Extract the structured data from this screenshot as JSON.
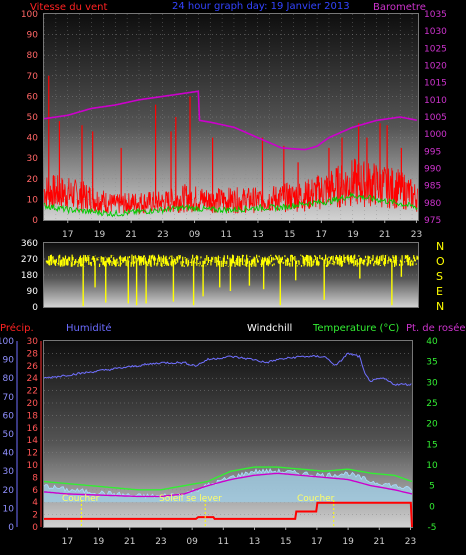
{
  "header": {
    "wind_label": "Vitesse du vent",
    "title": "24 hour graph day: 19 Janvier 2013",
    "baro_label": "Barometre"
  },
  "bottom_header": {
    "precip_label": "Précip.",
    "humidity_label": "Humidité",
    "windchill_label": "Windchill",
    "temp_label": "Temperature (°C)",
    "dew_label": "Pt. de rosée"
  },
  "compass": [
    "N",
    "O",
    "S",
    "E",
    "N"
  ],
  "annotations": {
    "sunset1": "Coucher",
    "sunrise": "Soleil se lever",
    "sunset2": "Coucher"
  },
  "colors": {
    "wind": "#ff0000",
    "gust": "#ff0000",
    "wind_avg": "#00cc00",
    "barometer": "#cc00cc",
    "direction": "#ffff00",
    "humidity": "#7070ff",
    "temperature": "#33ee33",
    "dewpoint": "#cc00cc",
    "windchill": "#aaddff",
    "precip": "#ff0000",
    "sun_marker": "#ffff00"
  },
  "chart_data": [
    {
      "type": "line",
      "name": "wind-barometer",
      "x_ticks": [
        "17",
        "19",
        "21",
        "23",
        "09",
        "11",
        "13",
        "15",
        "17",
        "19",
        "21",
        "23"
      ],
      "y_left_ticks": [
        "100",
        "90",
        "80",
        "70",
        "60",
        "50",
        "40",
        "30",
        "20",
        "10",
        "0"
      ],
      "y_left_range": [
        0,
        100
      ],
      "y_right_ticks": [
        "1035",
        "1030",
        "1025",
        "1020",
        "1015",
        "1010",
        "1005",
        "1000",
        "995",
        "990",
        "985",
        "980",
        "975"
      ],
      "y_right_range": [
        975,
        1035
      ],
      "barometer": [
        [
          0,
          1004.5
        ],
        [
          2,
          1005.5
        ],
        [
          4,
          1007.5
        ],
        [
          6,
          1008.5
        ],
        [
          8,
          1010
        ],
        [
          10,
          1011
        ],
        [
          12,
          1012
        ],
        [
          13,
          1012.5
        ],
        [
          13.1,
          1004
        ],
        [
          14,
          1003.5
        ],
        [
          16,
          1002
        ],
        [
          18,
          999
        ],
        [
          20,
          996
        ],
        [
          22,
          995.5
        ],
        [
          23,
          996.5
        ],
        [
          24,
          999
        ],
        [
          26,
          1002
        ],
        [
          28,
          1004
        ],
        [
          30,
          1005
        ],
        [
          31.5,
          1004
        ]
      ],
      "wind_base": [
        [
          0,
          13
        ],
        [
          2,
          12
        ],
        [
          4,
          10
        ],
        [
          6,
          7
        ],
        [
          8,
          8
        ],
        [
          10,
          8
        ],
        [
          12,
          10
        ],
        [
          14,
          9
        ],
        [
          16,
          9
        ],
        [
          18,
          9
        ],
        [
          20,
          10
        ],
        [
          22,
          11
        ],
        [
          24,
          14
        ],
        [
          26,
          17
        ],
        [
          28,
          16
        ],
        [
          30,
          14
        ],
        [
          31.5,
          10
        ]
      ],
      "gust_spikes": [
        [
          0.4,
          70
        ],
        [
          1.3,
          48
        ],
        [
          3.2,
          46
        ],
        [
          4.1,
          43
        ],
        [
          6.5,
          35
        ],
        [
          9.4,
          56
        ],
        [
          10.7,
          43
        ],
        [
          11.1,
          50
        ],
        [
          12.3,
          60
        ],
        [
          14.2,
          40
        ],
        [
          18.4,
          40
        ],
        [
          20.2,
          36
        ],
        [
          21.4,
          28
        ],
        [
          24.0,
          35
        ],
        [
          25.1,
          40
        ],
        [
          26.5,
          47
        ],
        [
          27.2,
          40
        ],
        [
          28.3,
          47
        ],
        [
          28.9,
          46
        ],
        [
          30.1,
          35
        ]
      ],
      "wind_avg": [
        [
          0,
          7
        ],
        [
          2,
          5
        ],
        [
          4,
          4
        ],
        [
          6,
          3
        ],
        [
          8,
          4
        ],
        [
          10,
          5
        ],
        [
          12,
          6
        ],
        [
          14,
          5
        ],
        [
          16,
          5
        ],
        [
          18,
          6
        ],
        [
          20,
          6
        ],
        [
          22,
          8
        ],
        [
          24,
          9
        ],
        [
          26,
          12
        ],
        [
          28,
          10
        ],
        [
          30,
          8
        ],
        [
          31.5,
          6
        ]
      ]
    },
    {
      "type": "line",
      "name": "wind-direction",
      "y_ticks": [
        "360",
        "270",
        "180",
        "90",
        "0"
      ],
      "y_range": [
        0,
        360
      ],
      "direction_mean": 260,
      "direction_dips": [
        [
          3.3,
          5
        ],
        [
          4.3,
          110
        ],
        [
          5.2,
          25
        ],
        [
          7.1,
          20
        ],
        [
          7.8,
          10
        ],
        [
          8.6,
          20
        ],
        [
          10.9,
          30
        ],
        [
          12.6,
          10
        ],
        [
          13.4,
          60
        ],
        [
          14.8,
          110
        ],
        [
          15.7,
          90
        ],
        [
          17.3,
          120
        ],
        [
          18.5,
          100
        ],
        [
          19.9,
          10
        ],
        [
          21.2,
          150
        ],
        [
          23.6,
          40
        ],
        [
          26.6,
          160
        ],
        [
          29.3,
          10
        ],
        [
          30.1,
          170
        ]
      ]
    },
    {
      "type": "line",
      "name": "temperature-humidity",
      "x_ticks": [
        "17",
        "19",
        "21",
        "23",
        "09",
        "11",
        "13",
        "15",
        "17",
        "19",
        "21",
        "23"
      ],
      "y_precip_ticks": [
        "100",
        "90",
        "80",
        "70",
        "60",
        "50",
        "40",
        "30",
        "20",
        "10",
        "0"
      ],
      "y_precip_range": [
        0,
        100
      ],
      "y_humidity_ticks": [
        "30",
        "28",
        "26",
        "24",
        "22",
        "20",
        "18",
        "16",
        "14",
        "12",
        "10",
        "8",
        "6",
        "4",
        "2",
        "0"
      ],
      "y_humidity_range": [
        0,
        30
      ],
      "y_temp_ticks": [
        "40",
        "35",
        "30",
        "25",
        "20",
        "15",
        "10",
        "5",
        "0",
        "-5"
      ],
      "y_temp_range": [
        -5,
        40
      ],
      "humidity": [
        [
          0,
          24
        ],
        [
          2,
          24.5
        ],
        [
          4,
          25
        ],
        [
          6,
          25.5
        ],
        [
          8,
          26
        ],
        [
          10,
          26.5
        ],
        [
          12,
          26.5
        ],
        [
          13,
          26
        ],
        [
          14,
          27
        ],
        [
          16,
          27.5
        ],
        [
          18,
          27
        ],
        [
          19,
          26.5
        ],
        [
          20,
          27
        ],
        [
          22,
          27.5
        ],
        [
          24,
          27.5
        ],
        [
          25,
          26
        ],
        [
          26,
          28
        ],
        [
          27,
          27.5
        ],
        [
          27.5,
          24.5
        ],
        [
          28,
          23.5
        ],
        [
          29,
          24
        ],
        [
          30,
          23
        ],
        [
          31.5,
          23
        ]
      ],
      "temperature": [
        [
          0,
          6
        ],
        [
          2,
          5.5
        ],
        [
          4,
          5
        ],
        [
          6,
          4.5
        ],
        [
          8,
          4
        ],
        [
          10,
          4
        ],
        [
          12,
          5
        ],
        [
          13,
          5.5
        ],
        [
          14,
          6
        ],
        [
          16,
          8.5
        ],
        [
          18,
          9.5
        ],
        [
          20,
          9.5
        ],
        [
          22,
          9
        ],
        [
          24,
          8.5
        ],
        [
          26,
          9
        ],
        [
          28,
          8
        ],
        [
          30,
          7.5
        ],
        [
          31.5,
          6
        ]
      ],
      "windchill": [
        [
          0,
          5
        ],
        [
          2,
          4
        ],
        [
          4,
          3.5
        ],
        [
          6,
          3
        ],
        [
          8,
          2.5
        ],
        [
          10,
          2.5
        ],
        [
          12,
          3
        ],
        [
          13,
          4
        ],
        [
          14,
          5
        ],
        [
          16,
          7
        ],
        [
          18,
          8.5
        ],
        [
          20,
          8.5
        ],
        [
          22,
          8
        ],
        [
          24,
          7.5
        ],
        [
          26,
          8
        ],
        [
          28,
          6
        ],
        [
          30,
          5
        ],
        [
          31.5,
          4
        ]
      ],
      "dewpoint": [
        [
          0,
          3.5
        ],
        [
          2,
          3
        ],
        [
          4,
          2.8
        ],
        [
          6,
          2.6
        ],
        [
          8,
          2.4
        ],
        [
          10,
          2.4
        ],
        [
          12,
          3
        ],
        [
          13,
          4
        ],
        [
          14,
          5
        ],
        [
          16,
          6.5
        ],
        [
          18,
          7.5
        ],
        [
          20,
          8
        ],
        [
          22,
          7.5
        ],
        [
          24,
          7
        ],
        [
          26,
          6.5
        ],
        [
          28,
          5
        ],
        [
          30,
          4
        ],
        [
          31.5,
          3
        ]
      ],
      "precip": [
        [
          0,
          1.3
        ],
        [
          13,
          1.3
        ],
        [
          13.2,
          1.6
        ],
        [
          14.5,
          1.6
        ],
        [
          14.6,
          1.3
        ],
        [
          21.5,
          1.3
        ],
        [
          21.6,
          2.5
        ],
        [
          23.3,
          2.5
        ],
        [
          23.4,
          3.9
        ],
        [
          31.4,
          3.9
        ],
        [
          31.5,
          0
        ]
      ],
      "sun_markers": [
        3.2,
        13.8,
        24.8
      ]
    }
  ]
}
